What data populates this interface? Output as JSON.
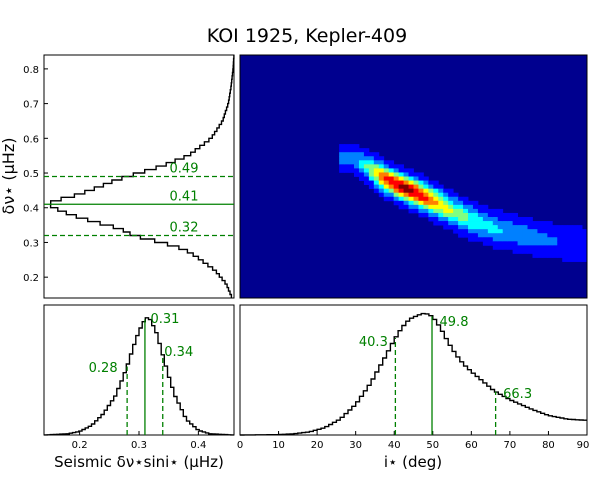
{
  "title": "KOI 1925, Kepler-409",
  "colors": {
    "annotation": "#008000",
    "histogram": "#000000",
    "heatmap_background": "#00008f",
    "heatmap_scale": [
      "#00008f",
      "#0000ff",
      "#0080ff",
      "#00ffff",
      "#80ff80",
      "#ffff00",
      "#ff8000",
      "#ff0000",
      "#800000"
    ]
  },
  "chart_data": [
    {
      "panel": "top-left",
      "type": "line",
      "orientation": "horizontal",
      "description_axis": "histogram of delta-nu-star (marginal)",
      "ylabel": "δν⋆ (μHz)",
      "ylim": [
        0.14,
        0.84
      ],
      "yticks": [
        "0.2",
        "0.3",
        "0.4",
        "0.5",
        "0.6",
        "0.7",
        "0.8"
      ],
      "ytick_values": [
        0.2,
        0.3,
        0.4,
        0.5,
        0.6,
        0.7,
        0.8
      ],
      "xlim": [
        0,
        1
      ],
      "curve": {
        "y": [
          0.14,
          0.18,
          0.22,
          0.26,
          0.28,
          0.3,
          0.32,
          0.34,
          0.36,
          0.38,
          0.4,
          0.41,
          0.42,
          0.43,
          0.44,
          0.46,
          0.48,
          0.5,
          0.52,
          0.55,
          0.6,
          0.65,
          0.7,
          0.75,
          0.8,
          0.84
        ],
        "x": [
          0.99,
          0.96,
          0.9,
          0.8,
          0.74,
          0.62,
          0.47,
          0.4,
          0.26,
          0.14,
          0.05,
          0.02,
          0.05,
          0.13,
          0.19,
          0.29,
          0.38,
          0.5,
          0.62,
          0.76,
          0.88,
          0.94,
          0.97,
          0.985,
          0.995,
          1.0
        ]
      },
      "markers": [
        {
          "value": 0.49,
          "label": "0.49",
          "style": "dashed"
        },
        {
          "value": 0.41,
          "label": "0.41",
          "style": "solid"
        },
        {
          "value": 0.32,
          "label": "0.32",
          "style": "dashed"
        }
      ]
    },
    {
      "panel": "top-right",
      "type": "heatmap",
      "description_axis": "joint density of inclination vs delta-nu-star",
      "xlim": [
        0,
        90
      ],
      "ylim": [
        0.14,
        0.84
      ],
      "ridge": {
        "x": [
          30,
          34,
          38,
          42,
          46,
          50,
          55,
          60,
          66,
          72,
          78,
          84,
          90
        ],
        "y": [
          0.54,
          0.51,
          0.48,
          0.46,
          0.44,
          0.42,
          0.39,
          0.365,
          0.34,
          0.325,
          0.31,
          0.3,
          0.295
        ],
        "intensity": [
          0.25,
          0.55,
          0.85,
          1.0,
          0.92,
          0.75,
          0.55,
          0.42,
          0.33,
          0.27,
          0.22,
          0.18,
          0.15
        ]
      }
    },
    {
      "panel": "bottom-left",
      "type": "line",
      "xlabel": "Seismic δν⋆sini⋆ (μHz)",
      "xlim": [
        0.14,
        0.46
      ],
      "xticks": [
        "0.2",
        "0.3",
        "0.4"
      ],
      "xtick_values": [
        0.2,
        0.3,
        0.4
      ],
      "curve": {
        "x": [
          0.14,
          0.18,
          0.2,
          0.22,
          0.24,
          0.26,
          0.27,
          0.28,
          0.29,
          0.3,
          0.31,
          0.315,
          0.32,
          0.33,
          0.34,
          0.35,
          0.36,
          0.38,
          0.4,
          0.42,
          0.46
        ],
        "y": [
          0.0,
          0.01,
          0.03,
          0.08,
          0.18,
          0.33,
          0.45,
          0.58,
          0.74,
          0.88,
          0.98,
          1.0,
          0.97,
          0.86,
          0.68,
          0.5,
          0.34,
          0.13,
          0.04,
          0.01,
          0.0
        ]
      },
      "markers": [
        {
          "value": 0.28,
          "label": "0.28",
          "style": "dashed"
        },
        {
          "value": 0.31,
          "label": "0.31",
          "style": "solid"
        },
        {
          "value": 0.34,
          "label": "0.34",
          "style": "dashed"
        }
      ]
    },
    {
      "panel": "bottom-right",
      "type": "line",
      "xlabel": "i⋆ (deg)",
      "xlim": [
        0,
        90
      ],
      "xticks": [
        "0",
        "10",
        "20",
        "30",
        "40",
        "50",
        "60",
        "70",
        "80",
        "90"
      ],
      "xtick_values": [
        0,
        10,
        20,
        30,
        40,
        50,
        60,
        70,
        80,
        90
      ],
      "curve": {
        "x": [
          0,
          10,
          14,
          18,
          22,
          26,
          30,
          34,
          38,
          40,
          42,
          44,
          46,
          48,
          50,
          52,
          54,
          56,
          58,
          60,
          63,
          66,
          70,
          75,
          80,
          85,
          90
        ],
        "y": [
          0.0,
          0.003,
          0.01,
          0.025,
          0.06,
          0.13,
          0.25,
          0.43,
          0.66,
          0.78,
          0.88,
          0.95,
          0.98,
          1.0,
          0.97,
          0.88,
          0.76,
          0.66,
          0.58,
          0.52,
          0.44,
          0.36,
          0.29,
          0.22,
          0.16,
          0.13,
          0.12
        ]
      },
      "markers": [
        {
          "value": 40.3,
          "label": "40.3",
          "style": "dashed"
        },
        {
          "value": 49.8,
          "label": "49.8",
          "style": "solid"
        },
        {
          "value": 66.3,
          "label": "66.3",
          "style": "dashed"
        }
      ]
    }
  ]
}
